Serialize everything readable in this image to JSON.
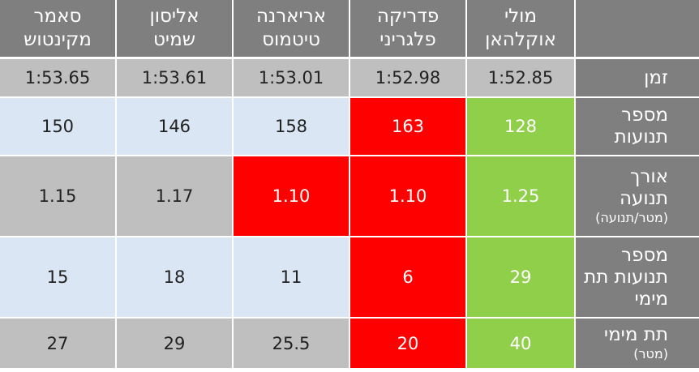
{
  "colors": {
    "header_bg": "#7f7f7f",
    "grey_cell": "#bfbfbf",
    "blue_cell": "#dae6f3",
    "worst": "#ff0000",
    "best": "#8fcf4a"
  },
  "table": {
    "columns": [
      {
        "line1": "מולי",
        "line2": "אוקלהאן"
      },
      {
        "line1": "פדריקה",
        "line2": "פלגריני"
      },
      {
        "line1": "אריארנה",
        "line2": "טיטמוס"
      },
      {
        "line1": "אליסון",
        "line2": "שמיט"
      },
      {
        "line1": "סאמר",
        "line2": "מקינטוש"
      }
    ],
    "rows": [
      {
        "label_lines": [
          "זמן"
        ],
        "label_small": "",
        "values": [
          "1:52.85",
          "1:52.98",
          "1:53.01",
          "1:53.61",
          "1:53.65"
        ],
        "highlights": [
          "grey",
          "grey",
          "grey",
          "grey",
          "grey"
        ]
      },
      {
        "label_lines": [
          "מספר",
          "תנועות"
        ],
        "label_small": "",
        "values": [
          "128",
          "163",
          "158",
          "146",
          "150"
        ],
        "highlights": [
          "green",
          "red",
          "blue",
          "blue",
          "blue"
        ]
      },
      {
        "label_lines": [
          "אורך",
          "תנועה"
        ],
        "label_small": "(מטר/תנועה)",
        "values": [
          "1.25",
          "1.10",
          "1.10",
          "1.17",
          "1.15"
        ],
        "highlights": [
          "green",
          "red",
          "red",
          "grey",
          "grey"
        ]
      },
      {
        "label_lines": [
          "מספר",
          "תנועות תת",
          "מימי"
        ],
        "label_small": "",
        "values": [
          "29",
          "6",
          "11",
          "18",
          "15"
        ],
        "highlights": [
          "green",
          "red",
          "blue",
          "blue",
          "blue"
        ]
      },
      {
        "label_lines": [
          "תת מימי"
        ],
        "label_small": "(מטר)",
        "values": [
          "40",
          "20",
          "25.5",
          "29",
          "27"
        ],
        "highlights": [
          "green",
          "red",
          "grey",
          "grey",
          "grey"
        ]
      }
    ]
  }
}
